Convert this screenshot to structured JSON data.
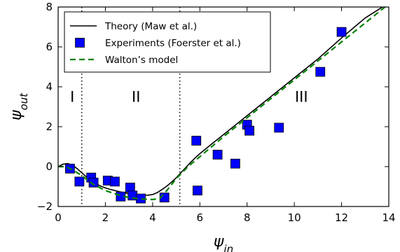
{
  "chart_data": {
    "type": "scatter",
    "xlabel_sym": "ψ",
    "xlabel_sub": "in",
    "ylabel_sym": "ψ",
    "ylabel_sub": "out",
    "xlim": [
      0,
      14
    ],
    "ylim": [
      -2,
      8
    ],
    "xticks": [
      0,
      2,
      4,
      6,
      8,
      10,
      12,
      14
    ],
    "yticks": [
      -2,
      0,
      2,
      4,
      6,
      8
    ],
    "regions": [
      {
        "label": "I",
        "x": 0.6,
        "y": 3.5
      },
      {
        "label": "II",
        "x": 3.3,
        "y": 3.5
      },
      {
        "label": "III",
        "x": 10.3,
        "y": 3.5
      }
    ],
    "region_boundaries": [
      1.0,
      5.15
    ],
    "legend_position": "upper-left",
    "series": [
      {
        "name": "Theory (Maw et al.)",
        "kind": "line",
        "color": "#000000",
        "x": [
          0.0,
          0.2,
          0.4,
          0.6,
          0.8,
          1.0,
          1.2,
          1.4,
          1.6,
          1.8,
          2.0,
          2.2,
          2.4,
          2.6,
          2.8,
          3.0,
          3.2,
          3.4,
          3.6,
          3.8,
          4.0,
          4.2,
          4.4,
          4.6,
          4.8,
          5.0,
          5.2,
          5.4,
          5.6,
          5.8,
          6.0,
          6.5,
          7.0,
          8.0,
          9.0,
          10.0,
          11.0,
          12.0,
          13.0,
          14.0
        ],
        "y": [
          0.0,
          0.12,
          0.15,
          0.08,
          -0.1,
          -0.31,
          -0.52,
          -0.71,
          -0.86,
          -0.98,
          -1.07,
          -1.14,
          -1.2,
          -1.26,
          -1.31,
          -1.36,
          -1.4,
          -1.43,
          -1.44,
          -1.43,
          -1.4,
          -1.3,
          -1.15,
          -0.98,
          -0.78,
          -0.56,
          -0.3,
          -0.05,
          0.2,
          0.43,
          0.65,
          1.13,
          1.6,
          2.55,
          3.5,
          4.45,
          5.4,
          6.45,
          7.45,
          8.2
        ]
      },
      {
        "name": "Experiments (Foerster et al.)",
        "kind": "scatter",
        "color": "#0000ff",
        "x": [
          0.5,
          0.9,
          1.4,
          1.5,
          2.1,
          2.4,
          2.65,
          3.05,
          3.15,
          3.5,
          4.5,
          5.9,
          5.85,
          6.75,
          7.5,
          8.0,
          8.1,
          9.35,
          11.1,
          12.0
        ],
        "y": [
          -0.1,
          -0.75,
          -0.55,
          -0.8,
          -0.7,
          -0.75,
          -1.5,
          -1.05,
          -1.45,
          -1.6,
          -1.55,
          -1.2,
          1.3,
          0.6,
          0.15,
          2.1,
          1.8,
          1.95,
          4.75,
          6.75
        ]
      },
      {
        "name": "Walton’s model",
        "kind": "dashed-line",
        "color": "#008000",
        "x": [
          0.0,
          0.3,
          0.6,
          1.0,
          1.5,
          2.0,
          2.5,
          3.0,
          3.5,
          4.0,
          4.3,
          4.6,
          5.0,
          5.5,
          6.0,
          7.0,
          8.0,
          9.0,
          10.0,
          11.0,
          12.0,
          13.0,
          14.0
        ],
        "y": [
          0.0,
          0.0,
          -0.15,
          -0.45,
          -0.9,
          -1.2,
          -1.4,
          -1.55,
          -1.62,
          -1.65,
          -1.6,
          -1.2,
          -0.6,
          0.0,
          0.5,
          1.5,
          2.45,
          3.4,
          4.35,
          5.3,
          6.25,
          7.2,
          8.15
        ]
      }
    ]
  }
}
